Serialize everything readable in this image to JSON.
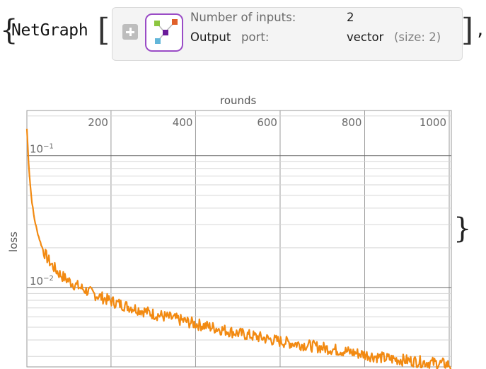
{
  "expression": {
    "brace_open": "{",
    "head": "NetGraph",
    "bracket_open": "[",
    "bracket_close": "]",
    "comma": ",",
    "brace_close": "}"
  },
  "summary": {
    "expand_icon": "plus-icon",
    "net_icon": "netgraph-icon",
    "icon_color": "#9a4cc6",
    "inputs_label": "Number of inputs:",
    "inputs_value": "2",
    "output_label_bold": "Output",
    "output_label_rest": "port:",
    "output_value": "vector",
    "output_detail": "(size: 2)"
  },
  "chart_data": {
    "type": "line",
    "title": "",
    "xlabel": "rounds",
    "ylabel": "loss",
    "x_ticks": [
      "200",
      "400",
      "600",
      "800",
      "1000"
    ],
    "y_ticks": [
      {
        "base": "10",
        "exp": "−1"
      },
      {
        "base": "10",
        "exp": "−2"
      }
    ],
    "y_scale": "log",
    "xlim": [
      1,
      1005
    ],
    "ylim": [
      0.0025,
      0.22
    ],
    "grid": true,
    "series": [
      {
        "color": "#f28a12",
        "x": [
          1,
          3,
          5,
          8,
          12,
          18,
          25,
          33,
          40,
          50,
          60,
          75,
          90,
          110,
          135,
          160,
          190,
          220,
          260,
          300,
          350,
          400,
          450,
          500,
          550,
          600,
          650,
          700,
          750,
          800,
          850,
          900,
          950,
          980,
          1000,
          1005
        ],
        "y": [
          0.16,
          0.12,
          0.09,
          0.065,
          0.047,
          0.034,
          0.027,
          0.022,
          0.019,
          0.0165,
          0.0148,
          0.013,
          0.0118,
          0.0107,
          0.0097,
          0.0089,
          0.0081,
          0.0075,
          0.0069,
          0.0063,
          0.0058,
          0.0053,
          0.0049,
          0.0045,
          0.0042,
          0.0039,
          0.0037,
          0.0035,
          0.0033,
          0.0031,
          0.0029,
          0.0028,
          0.0027,
          0.00265,
          0.0026,
          0.0025
        ]
      }
    ]
  }
}
